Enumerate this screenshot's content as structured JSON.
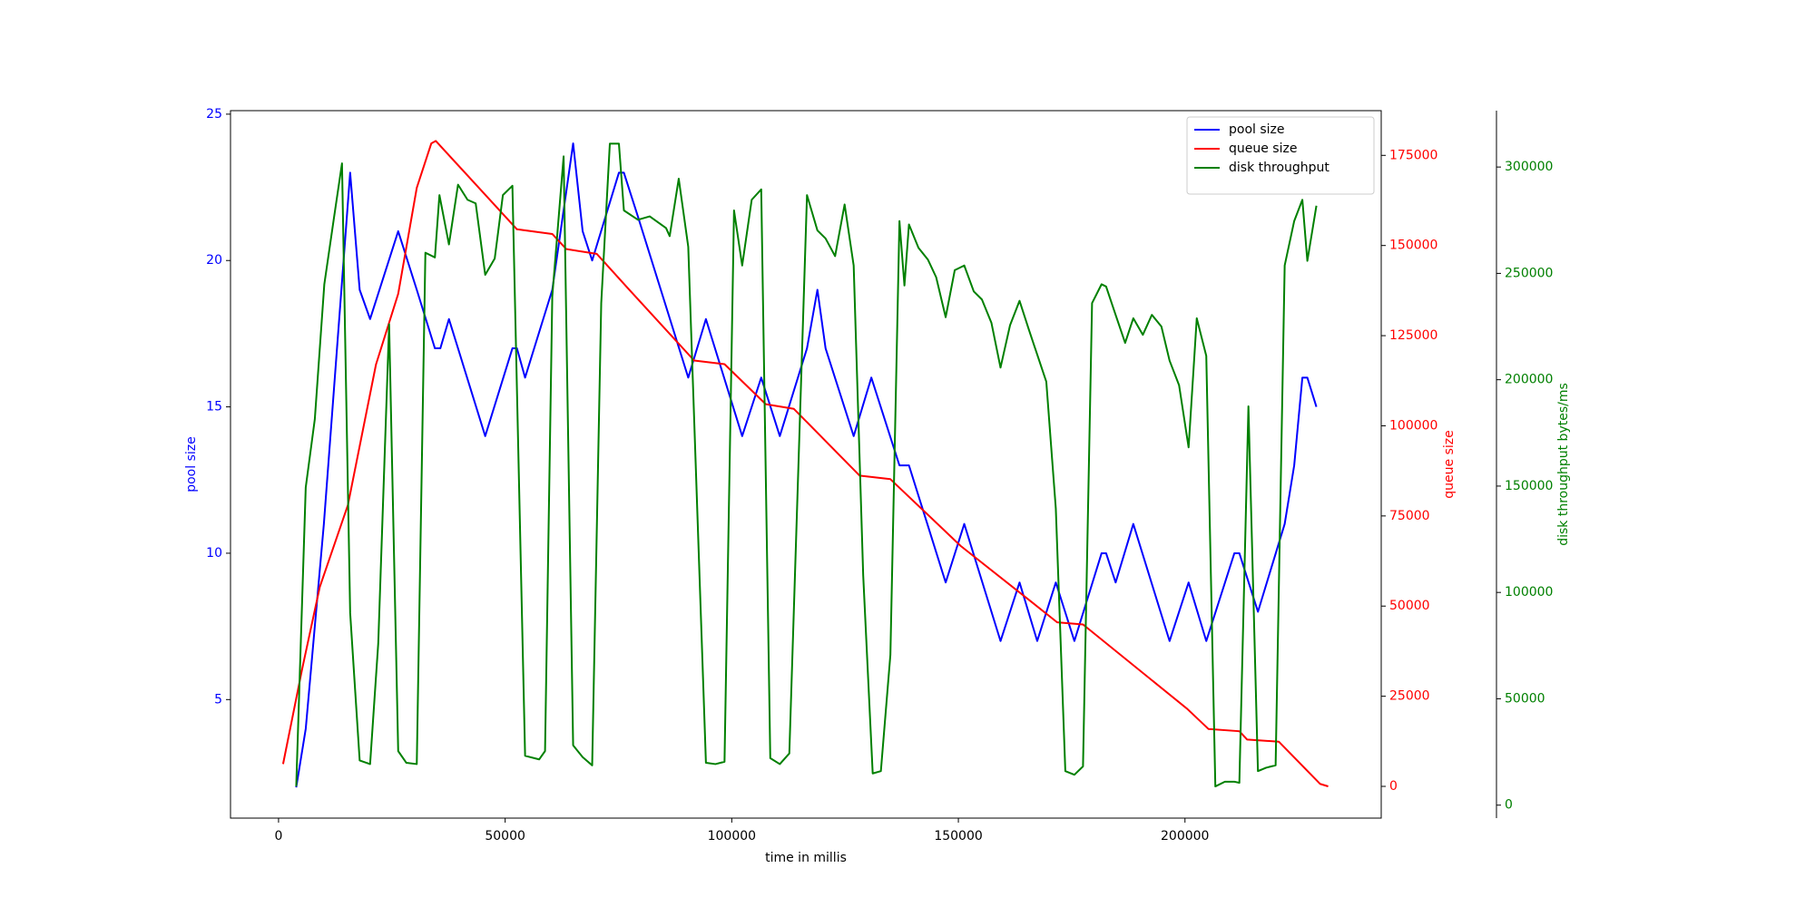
{
  "chart_data": {
    "type": "line",
    "xlabel": "time in millis",
    "ylabel": "pool size",
    "y2label": "queue size",
    "y3label": "disk throughput bytes/ms",
    "xlim": [
      -10600,
      243300
    ],
    "ylim": [
      0.95,
      25.12
    ],
    "y2lim": [
      -8800,
      187400
    ],
    "y3lim": [
      -6100,
      326500
    ],
    "xticks": [
      0,
      50000,
      100000,
      150000,
      200000
    ],
    "yticks": [
      5,
      10,
      15,
      20,
      25
    ],
    "y2ticks": [
      0,
      25000,
      50000,
      75000,
      100000,
      125000,
      150000,
      175000
    ],
    "y3ticks": [
      0,
      50000,
      100000,
      150000,
      200000,
      250000,
      300000
    ],
    "legend": "upper right",
    "series": [
      {
        "name": "pool size",
        "color": "#0000ff",
        "axis": "y",
        "x": [
          3900,
          6000,
          10000,
          15800,
          17900,
          20200,
          26400,
          30500,
          34500,
          35700,
          37600,
          45600,
          51600,
          52600,
          54400,
          60400,
          65000,
          67100,
          69200,
          75100,
          76200,
          79300,
          90400,
          94300,
          102300,
          106500,
          110600,
          116600,
          118900,
          120700,
          126900,
          130800,
          137000,
          139100,
          147200,
          151300,
          159300,
          163500,
          167400,
          171500,
          175600,
          181600,
          182600,
          184700,
          188600,
          196600,
          200800,
          204700,
          210900,
          212000,
          216100,
          222000,
          224100,
          225900,
          227000,
          229000
        ],
        "values": [
          2,
          4,
          11,
          23,
          19,
          18,
          21,
          19,
          17,
          17,
          18,
          14,
          17,
          17,
          16,
          19,
          24,
          21,
          20,
          23,
          23,
          21.5,
          16,
          18,
          14,
          16,
          14,
          17,
          19,
          17,
          14,
          16,
          13,
          13,
          9,
          11,
          7,
          9,
          7,
          9,
          7,
          10,
          10,
          9,
          11,
          7,
          9,
          7,
          10,
          10,
          8,
          11,
          13,
          16,
          16,
          15
        ]
      },
      {
        "name": "queue size",
        "color": "#ff0000",
        "axis": "y2",
        "x": [
          1000,
          5200,
          9100,
          15300,
          21500,
          26400,
          30500,
          33700,
          34700,
          52600,
          60400,
          63500,
          70200,
          77200,
          91700,
          98400,
          107500,
          113700,
          128200,
          135000,
          150500,
          166600,
          171800,
          177500,
          200500,
          205200,
          212000,
          213700,
          220700,
          229800,
          231600
        ],
        "values": [
          6200,
          32500,
          55300,
          78000,
          117000,
          136600,
          166000,
          178300,
          179000,
          154500,
          153200,
          149000,
          147700,
          138000,
          118100,
          117100,
          106000,
          104700,
          86200,
          85200,
          66700,
          50700,
          45500,
          44900,
          21500,
          15900,
          15300,
          13000,
          12400,
          700,
          0
        ]
      },
      {
        "name": "disk throughput",
        "color": "#008000",
        "axis": "y3",
        "x": [
          3900,
          6000,
          8000,
          10100,
          12200,
          14000,
          15800,
          17900,
          20200,
          22000,
          24400,
          26400,
          28200,
          30500,
          32400,
          34500,
          35500,
          37600,
          39600,
          41700,
          43500,
          45600,
          47700,
          49500,
          51600,
          54400,
          57500,
          58800,
          60400,
          62900,
          65000,
          67100,
          69200,
          71200,
          73100,
          75100,
          76200,
          79300,
          81900,
          85500,
          86300,
          88300,
          90400,
          94300,
          96400,
          98400,
          100500,
          102300,
          104400,
          106500,
          108500,
          110600,
          112700,
          116600,
          118900,
          120700,
          122800,
          124900,
          126900,
          129000,
          131100,
          132900,
          135000,
          137000,
          138100,
          139100,
          141200,
          143300,
          145100,
          147200,
          149200,
          151300,
          153400,
          155200,
          157300,
          159300,
          161400,
          163500,
          165500,
          167400,
          169400,
          171500,
          173600,
          175600,
          177500,
          179500,
          181600,
          182600,
          184700,
          186800,
          188600,
          190700,
          192700,
          194800,
          196600,
          198700,
          200800,
          202600,
          204700,
          206700,
          208800,
          210900,
          212000,
          214000,
          216100,
          217900,
          220000,
          222000,
          224100,
          225900,
          227000,
          229000
        ],
        "values": [
          8800,
          149400,
          181400,
          244900,
          275700,
          301700,
          90400,
          21000,
          19300,
          76100,
          226100,
          25400,
          19900,
          19300,
          259700,
          257500,
          286800,
          263600,
          291700,
          284600,
          282900,
          249300,
          257000,
          286800,
          291200,
          23200,
          21500,
          25400,
          239300,
          305000,
          28100,
          22600,
          18700,
          236000,
          311000,
          311000,
          279600,
          275200,
          276800,
          271300,
          267500,
          294500,
          262500,
          19900,
          19300,
          20400,
          279600,
          253700,
          284600,
          289500,
          22100,
          19300,
          24300,
          286800,
          270200,
          266400,
          258100,
          282400,
          253700,
          108100,
          14900,
          16000,
          70600,
          274600,
          244300,
          273000,
          262000,
          256400,
          248200,
          229400,
          251500,
          253700,
          241500,
          237700,
          226700,
          205700,
          225600,
          237100,
          223900,
          211800,
          199100,
          139500,
          16000,
          14300,
          18200,
          236000,
          244900,
          243800,
          230500,
          217300,
          228900,
          221100,
          230500,
          225000,
          209000,
          197400,
          168200,
          228900,
          211200,
          8800,
          11000,
          11000,
          10500,
          187500,
          16000,
          17600,
          18700,
          253700,
          274600,
          284600,
          255900,
          281800
        ]
      }
    ]
  }
}
